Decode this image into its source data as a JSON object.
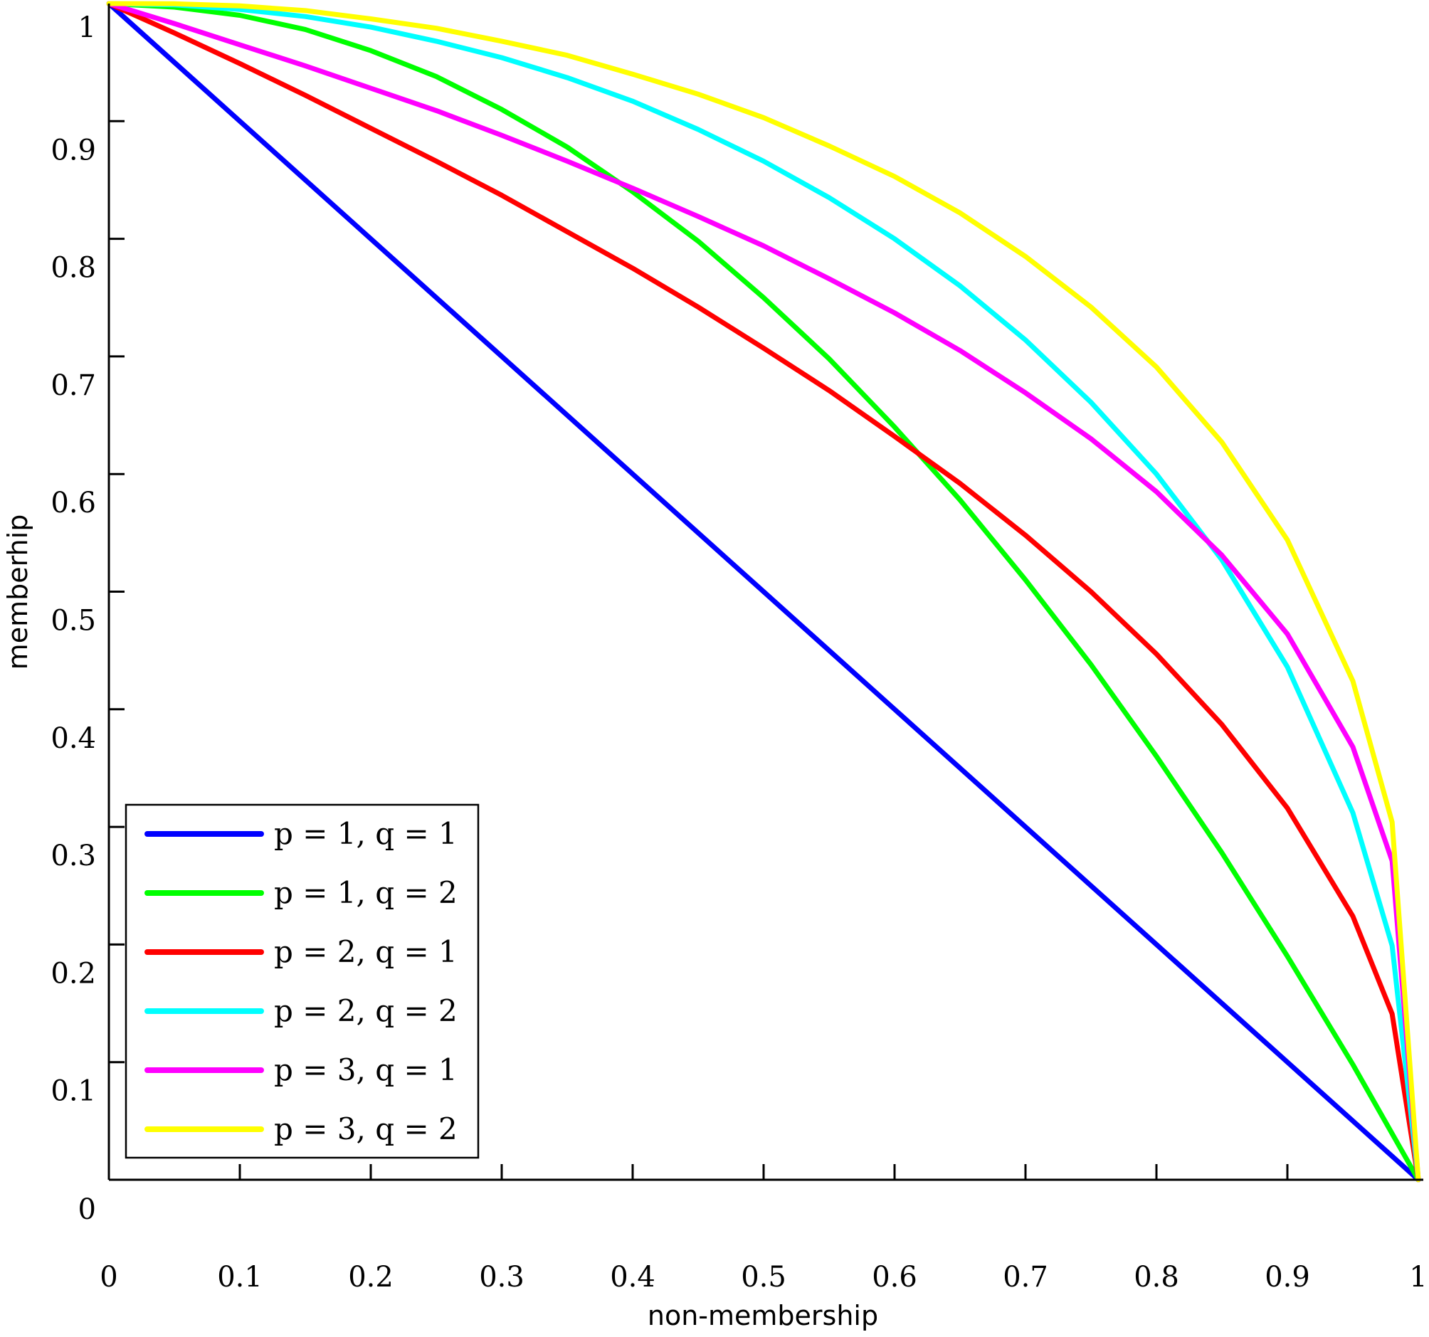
{
  "chart_data": {
    "type": "line",
    "xlabel": "non-membership",
    "ylabel": "memberhip",
    "xlim": [
      0,
      1
    ],
    "ylim": [
      0,
      1
    ],
    "grid": false,
    "legend_position": "bottom-left",
    "x_ticks": [
      "0",
      "0.1",
      "0.2",
      "0.3",
      "0.4",
      "0.5",
      "0.6",
      "0.7",
      "0.8",
      "0.9",
      "1"
    ],
    "y_ticks": [
      "0",
      "0.1",
      "0.2",
      "0.3",
      "0.4",
      "0.5",
      "0.6",
      "0.7",
      "0.8",
      "0.9",
      "1"
    ],
    "series": [
      {
        "name": "p = 1, q = 1",
        "color": "#0000ff",
        "points": [
          [
            0,
            1
          ],
          [
            0.1,
            0.9
          ],
          [
            0.2,
            0.8
          ],
          [
            0.3,
            0.7
          ],
          [
            0.4,
            0.6
          ],
          [
            0.5,
            0.5
          ],
          [
            0.6,
            0.4
          ],
          [
            0.7,
            0.3
          ],
          [
            0.8,
            0.2
          ],
          [
            0.9,
            0.1
          ],
          [
            1,
            0
          ]
        ]
      },
      {
        "name": "p = 1, q = 2",
        "color": "#00ff00",
        "points": [
          [
            0,
            1
          ],
          [
            0.05,
            0.997
          ],
          [
            0.1,
            0.99
          ],
          [
            0.15,
            0.978
          ],
          [
            0.2,
            0.96
          ],
          [
            0.25,
            0.938
          ],
          [
            0.3,
            0.91
          ],
          [
            0.35,
            0.878
          ],
          [
            0.4,
            0.84
          ],
          [
            0.45,
            0.798
          ],
          [
            0.5,
            0.75
          ],
          [
            0.55,
            0.698
          ],
          [
            0.6,
            0.64
          ],
          [
            0.65,
            0.578
          ],
          [
            0.7,
            0.51
          ],
          [
            0.75,
            0.438
          ],
          [
            0.8,
            0.36
          ],
          [
            0.85,
            0.278
          ],
          [
            0.9,
            0.19
          ],
          [
            0.95,
            0.098
          ],
          [
            1,
            0
          ]
        ]
      },
      {
        "name": "p = 2, q = 1",
        "color": "#ff0000",
        "points": [
          [
            0,
            1
          ],
          [
            0.05,
            0.975
          ],
          [
            0.1,
            0.949
          ],
          [
            0.15,
            0.922
          ],
          [
            0.2,
            0.894
          ],
          [
            0.25,
            0.866
          ],
          [
            0.3,
            0.837
          ],
          [
            0.35,
            0.806
          ],
          [
            0.4,
            0.775
          ],
          [
            0.45,
            0.742
          ],
          [
            0.5,
            0.707
          ],
          [
            0.55,
            0.671
          ],
          [
            0.6,
            0.632
          ],
          [
            0.65,
            0.592
          ],
          [
            0.7,
            0.548
          ],
          [
            0.75,
            0.5
          ],
          [
            0.8,
            0.447
          ],
          [
            0.85,
            0.387
          ],
          [
            0.9,
            0.316
          ],
          [
            0.95,
            0.224
          ],
          [
            0.98,
            0.141
          ],
          [
            1,
            0
          ]
        ]
      },
      {
        "name": "p = 2, q = 2",
        "color": "#00ffff",
        "points": [
          [
            0,
            1
          ],
          [
            0.05,
            0.999
          ],
          [
            0.1,
            0.995
          ],
          [
            0.15,
            0.989
          ],
          [
            0.2,
            0.98
          ],
          [
            0.25,
            0.968
          ],
          [
            0.3,
            0.954
          ],
          [
            0.35,
            0.937
          ],
          [
            0.4,
            0.917
          ],
          [
            0.45,
            0.893
          ],
          [
            0.5,
            0.866
          ],
          [
            0.55,
            0.835
          ],
          [
            0.6,
            0.8
          ],
          [
            0.65,
            0.76
          ],
          [
            0.7,
            0.714
          ],
          [
            0.75,
            0.661
          ],
          [
            0.8,
            0.6
          ],
          [
            0.85,
            0.527
          ],
          [
            0.9,
            0.436
          ],
          [
            0.95,
            0.312
          ],
          [
            0.98,
            0.199
          ],
          [
            1,
            0
          ]
        ]
      },
      {
        "name": "p = 3, q = 1",
        "color": "#ff00ff",
        "points": [
          [
            0,
            1
          ],
          [
            0.05,
            0.983
          ],
          [
            0.1,
            0.965
          ],
          [
            0.15,
            0.947
          ],
          [
            0.2,
            0.928
          ],
          [
            0.25,
            0.909
          ],
          [
            0.3,
            0.888
          ],
          [
            0.35,
            0.866
          ],
          [
            0.4,
            0.843
          ],
          [
            0.45,
            0.819
          ],
          [
            0.5,
            0.794
          ],
          [
            0.55,
            0.766
          ],
          [
            0.6,
            0.737
          ],
          [
            0.65,
            0.705
          ],
          [
            0.7,
            0.669
          ],
          [
            0.75,
            0.63
          ],
          [
            0.8,
            0.585
          ],
          [
            0.85,
            0.531
          ],
          [
            0.9,
            0.464
          ],
          [
            0.95,
            0.368
          ],
          [
            0.98,
            0.271
          ],
          [
            1,
            0
          ]
        ]
      },
      {
        "name": "p = 3, q = 2",
        "color": "#ffff00",
        "points": [
          [
            0,
            1
          ],
          [
            0.05,
            0.9998
          ],
          [
            0.1,
            0.998
          ],
          [
            0.15,
            0.994
          ],
          [
            0.2,
            0.987
          ],
          [
            0.25,
            0.979
          ],
          [
            0.3,
            0.968
          ],
          [
            0.35,
            0.956
          ],
          [
            0.4,
            0.94
          ],
          [
            0.45,
            0.923
          ],
          [
            0.5,
            0.903
          ],
          [
            0.55,
            0.879
          ],
          [
            0.6,
            0.853
          ],
          [
            0.65,
            0.822
          ],
          [
            0.7,
            0.785
          ],
          [
            0.75,
            0.742
          ],
          [
            0.8,
            0.691
          ],
          [
            0.85,
            0.627
          ],
          [
            0.9,
            0.544
          ],
          [
            0.95,
            0.424
          ],
          [
            0.98,
            0.304
          ],
          [
            1,
            0
          ]
        ]
      }
    ]
  }
}
